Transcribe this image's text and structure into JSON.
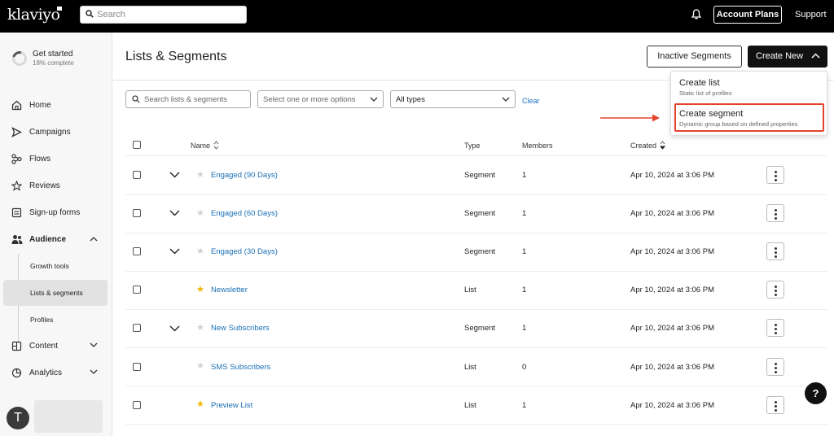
{
  "topbar": {
    "logo": "klaviyo",
    "search_placeholder": "Search",
    "account_plans": "Account Plans",
    "support": "Support"
  },
  "sidebar": {
    "get_started": {
      "title": "Get started",
      "progress_text": "18% complete",
      "progress": 0.18
    },
    "items": [
      {
        "label": "Home",
        "icon": "home-icon"
      },
      {
        "label": "Campaigns",
        "icon": "send-icon"
      },
      {
        "label": "Flows",
        "icon": "flows-icon"
      },
      {
        "label": "Reviews",
        "icon": "star-icon"
      },
      {
        "label": "Sign-up forms",
        "icon": "form-icon"
      },
      {
        "label": "Audience",
        "icon": "people-icon",
        "expanded": true
      },
      {
        "label": "Content",
        "icon": "content-icon"
      },
      {
        "label": "Analytics",
        "icon": "analytics-icon"
      }
    ],
    "audience_sub": [
      {
        "label": "Growth tools"
      },
      {
        "label": "Lists & segments",
        "active": true
      },
      {
        "label": "Profiles"
      }
    ],
    "avatar_initial": "T"
  },
  "main": {
    "title": "Lists & Segments",
    "inactive_segments": "Inactive Segments",
    "create_new": "Create New",
    "filters": {
      "search_placeholder": "Search lists & segments",
      "options_placeholder": "Select one or more options",
      "types_value": "All types",
      "clear": "Clear"
    },
    "dropdown": {
      "items": [
        {
          "title": "Create list",
          "subtitle": "Static list of profiles"
        },
        {
          "title": "Create segment",
          "subtitle": "Dynamic group based on defined properties"
        }
      ]
    },
    "columns": {
      "name": "Name",
      "type": "Type",
      "members": "Members",
      "created": "Created"
    },
    "rows": [
      {
        "name": "Engaged (90 Days)",
        "type": "Segment",
        "members": "1",
        "created": "Apr 10, 2024 at 3:06 PM",
        "starred": false,
        "expandable": true
      },
      {
        "name": "Engaged (60 Days)",
        "type": "Segment",
        "members": "1",
        "created": "Apr 10, 2024 at 3:06 PM",
        "starred": false,
        "expandable": true
      },
      {
        "name": "Engaged (30 Days)",
        "type": "Segment",
        "members": "1",
        "created": "Apr 10, 2024 at 3:06 PM",
        "starred": false,
        "expandable": true
      },
      {
        "name": "Newsletter",
        "type": "List",
        "members": "1",
        "created": "Apr 10, 2024 at 3:06 PM",
        "starred": true,
        "expandable": false
      },
      {
        "name": "New Subscribers",
        "type": "Segment",
        "members": "1",
        "created": "Apr 10, 2024 at 3:06 PM",
        "starred": false,
        "expandable": true
      },
      {
        "name": "SMS Subscribers",
        "type": "List",
        "members": "0",
        "created": "Apr 10, 2024 at 3:06 PM",
        "starred": false,
        "expandable": false
      },
      {
        "name": "Preview List",
        "type": "List",
        "members": "1",
        "created": "Apr 10, 2024 at 3:06 PM",
        "starred": true,
        "expandable": false
      }
    ],
    "help": "?"
  },
  "colors": {
    "link": "#1a6fb5",
    "star": "#f0b400",
    "highlight": "#e4432d",
    "topbar": "#000000"
  }
}
